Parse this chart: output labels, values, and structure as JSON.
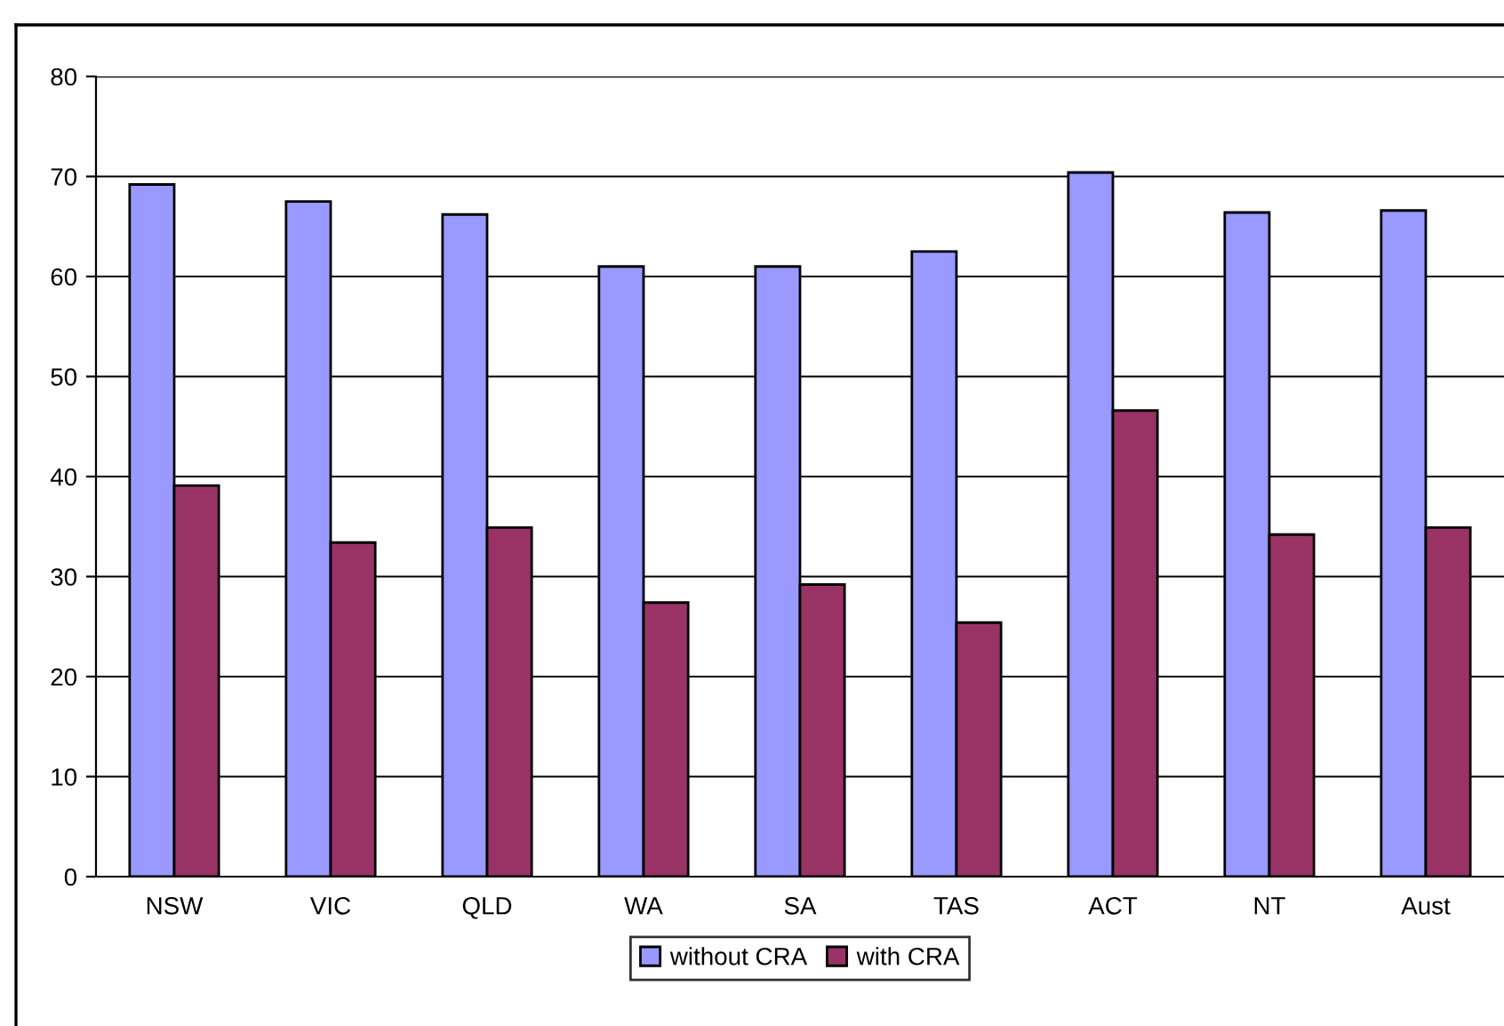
{
  "chart_data": {
    "type": "bar",
    "categories": [
      "NSW",
      "VIC",
      "QLD",
      "WA",
      "SA",
      "TAS",
      "ACT",
      "NT",
      "Aust"
    ],
    "series": [
      {
        "name": "without CRA",
        "color": "#9999ff",
        "values": [
          69.2,
          67.5,
          66.2,
          61.0,
          61.0,
          62.5,
          70.4,
          66.4,
          66.6
        ]
      },
      {
        "name": "with CRA",
        "color": "#993366",
        "values": [
          39.1,
          33.4,
          34.9,
          27.4,
          29.2,
          25.4,
          46.6,
          34.2,
          34.9
        ]
      }
    ],
    "ylim": [
      0,
      80
    ],
    "yticks": [
      0,
      10,
      20,
      30,
      40,
      50,
      60,
      70,
      80
    ],
    "grid": "y",
    "legend": "bottom"
  }
}
